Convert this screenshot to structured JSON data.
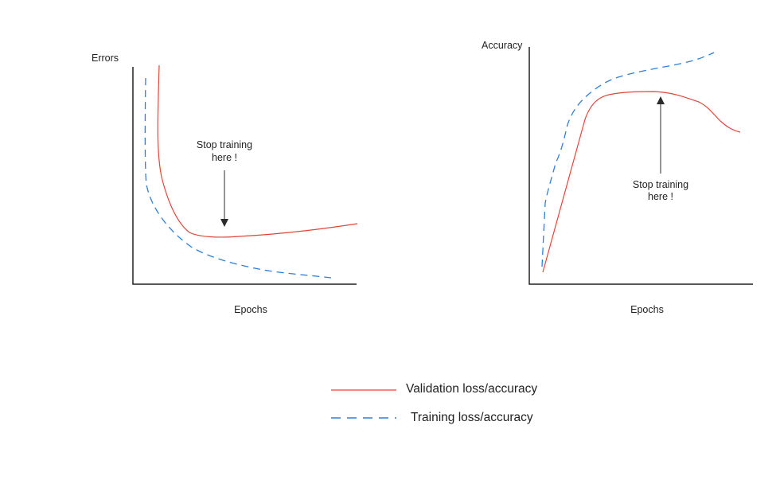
{
  "colors": {
    "validation": "#e0443a",
    "training": "#2f7fd8",
    "axis": "#222222"
  },
  "left_panel": {
    "y_label": "Errors",
    "x_label": "Epochs",
    "annotation": [
      "Stop training",
      "here !"
    ]
  },
  "right_panel": {
    "y_label": "Accuracy",
    "x_label": "Epochs",
    "annotation": [
      "Stop training",
      "here !"
    ]
  },
  "legend": {
    "validation": "Validation loss/accuracy",
    "training": "Training loss/accuracy"
  }
}
